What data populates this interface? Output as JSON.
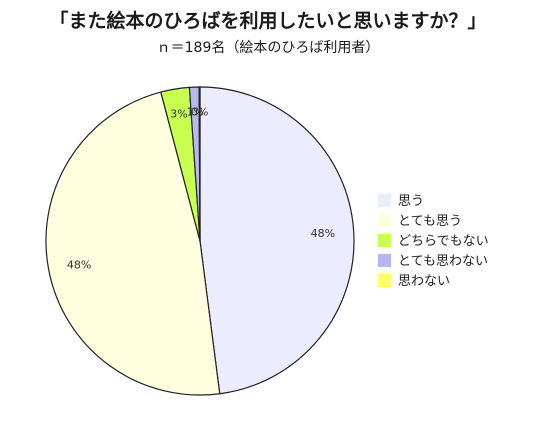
{
  "title": "「また絵本のひろばを利用したいと思いますか？」",
  "subtitle": "ｎ＝189名（絵本のひろば利用者）",
  "chart_data": {
    "type": "pie",
    "title": "「また絵本のひろばを利用したいと思いますか？」",
    "subtitle": "ｎ＝189名（絵本のひろば利用者）",
    "legend_position": "right",
    "slices": [
      {
        "label": "思う",
        "value": 48,
        "value_label": "48%",
        "color": "#ececff"
      },
      {
        "label": "とても思う",
        "value": 48,
        "value_label": "48%",
        "color": "#ffffe0"
      },
      {
        "label": "どちらでもない",
        "value": 3,
        "value_label": "3%",
        "color": "#c8ff50"
      },
      {
        "label": "とても思わない",
        "value": 1,
        "value_label": "1%",
        "color": "#b8b8f0"
      },
      {
        "label": "思わない",
        "value": 0,
        "value_label": "0%",
        "color": "#ffff66"
      }
    ]
  }
}
